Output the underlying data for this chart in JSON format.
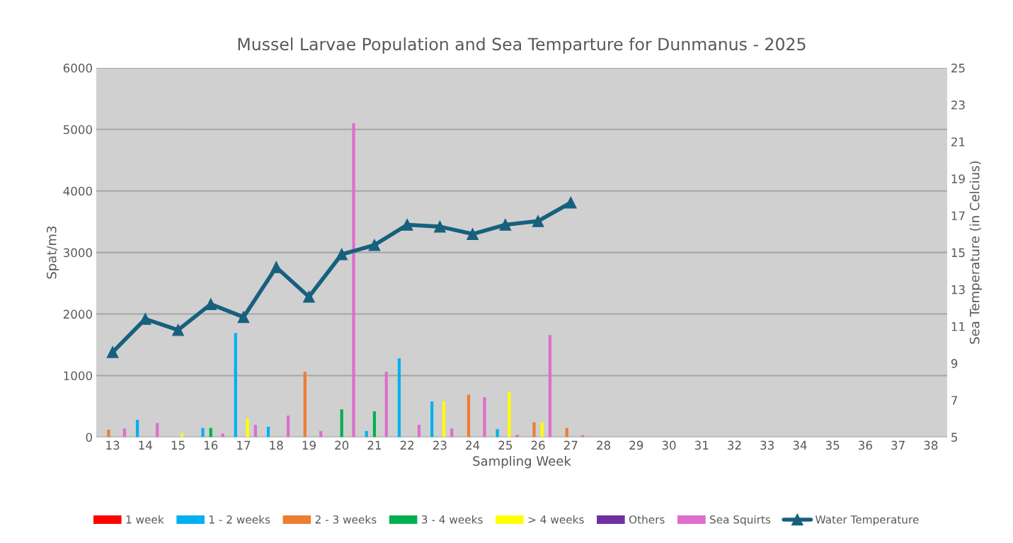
{
  "chart_data": {
    "type": "bar",
    "title": "Mussel Larvae Population and Sea Temparture for Dunmanus - 2025",
    "xlabel": "Sampling Week",
    "ylabel": "Spat/m3",
    "y2label": "Sea Temperature (in Celcius)",
    "categories": [
      "13",
      "14",
      "15",
      "16",
      "17",
      "18",
      "19",
      "20",
      "21",
      "22",
      "23",
      "24",
      "25",
      "26",
      "27",
      "28",
      "29",
      "30",
      "31",
      "32",
      "33",
      "34",
      "35",
      "36",
      "37",
      "38"
    ],
    "series": [
      {
        "name": "1 week",
        "color": "#ff0000",
        "values": [
          null,
          null,
          null,
          null,
          null,
          null,
          null,
          null,
          null,
          null,
          null,
          null,
          null,
          null,
          null,
          null,
          null,
          null,
          null,
          null,
          null,
          null,
          null,
          null,
          null,
          null
        ]
      },
      {
        "name": "1 - 2 weeks",
        "color": "#00b0f0",
        "values": [
          null,
          280,
          null,
          150,
          1690,
          170,
          null,
          null,
          100,
          1280,
          580,
          null,
          130,
          null,
          null,
          null,
          null,
          null,
          null,
          null,
          null,
          null,
          null,
          null,
          null,
          null
        ]
      },
      {
        "name": "2 - 3 weeks",
        "color": "#ed7d31",
        "values": [
          120,
          null,
          null,
          null,
          null,
          null,
          1060,
          null,
          null,
          null,
          null,
          690,
          null,
          240,
          150,
          null,
          null,
          null,
          null,
          null,
          null,
          null,
          null,
          null,
          null,
          null
        ]
      },
      {
        "name": "3 - 4 weeks",
        "color": "#00b050",
        "values": [
          null,
          null,
          null,
          150,
          null,
          null,
          null,
          450,
          420,
          null,
          null,
          null,
          null,
          null,
          null,
          null,
          null,
          null,
          null,
          null,
          null,
          null,
          null,
          null,
          null,
          null
        ]
      },
      {
        "name": "> 4 weeks",
        "color": "#ffff00",
        "values": [
          null,
          null,
          60,
          null,
          300,
          null,
          null,
          null,
          null,
          null,
          580,
          null,
          740,
          240,
          null,
          null,
          null,
          null,
          null,
          null,
          null,
          null,
          null,
          null,
          null,
          null
        ]
      },
      {
        "name": "Others",
        "color": "#7030a0",
        "values": [
          null,
          null,
          null,
          null,
          null,
          null,
          null,
          null,
          null,
          null,
          null,
          null,
          null,
          null,
          null,
          null,
          null,
          null,
          null,
          null,
          null,
          null,
          null,
          null,
          null,
          null
        ]
      },
      {
        "name": "Sea Squirts",
        "color": "#dd6ecb",
        "values": [
          140,
          230,
          null,
          60,
          200,
          350,
          100,
          5100,
          1060,
          200,
          140,
          650,
          40,
          1660,
          30,
          null,
          null,
          null,
          null,
          null,
          null,
          null,
          null,
          null,
          null,
          null
        ]
      },
      {
        "name": "Water Temperature",
        "type": "line",
        "axis": "y2",
        "color": "#17607e",
        "marker": "triangle",
        "values": [
          9.6,
          11.4,
          10.8,
          12.2,
          11.5,
          14.2,
          12.6,
          14.9,
          15.4,
          16.5,
          16.4,
          16.0,
          16.5,
          16.7,
          17.7,
          null,
          null,
          null,
          null,
          null,
          null,
          null,
          null,
          null,
          null,
          null
        ]
      }
    ],
    "ylim": [
      0,
      6000
    ],
    "yticks": [
      0,
      1000,
      2000,
      3000,
      4000,
      5000,
      6000
    ],
    "y2lim": [
      5,
      25
    ],
    "y2ticks": [
      5,
      7,
      9,
      11,
      13,
      15,
      17,
      19,
      21,
      23,
      25
    ],
    "grid": "y",
    "legend": "bottom"
  }
}
